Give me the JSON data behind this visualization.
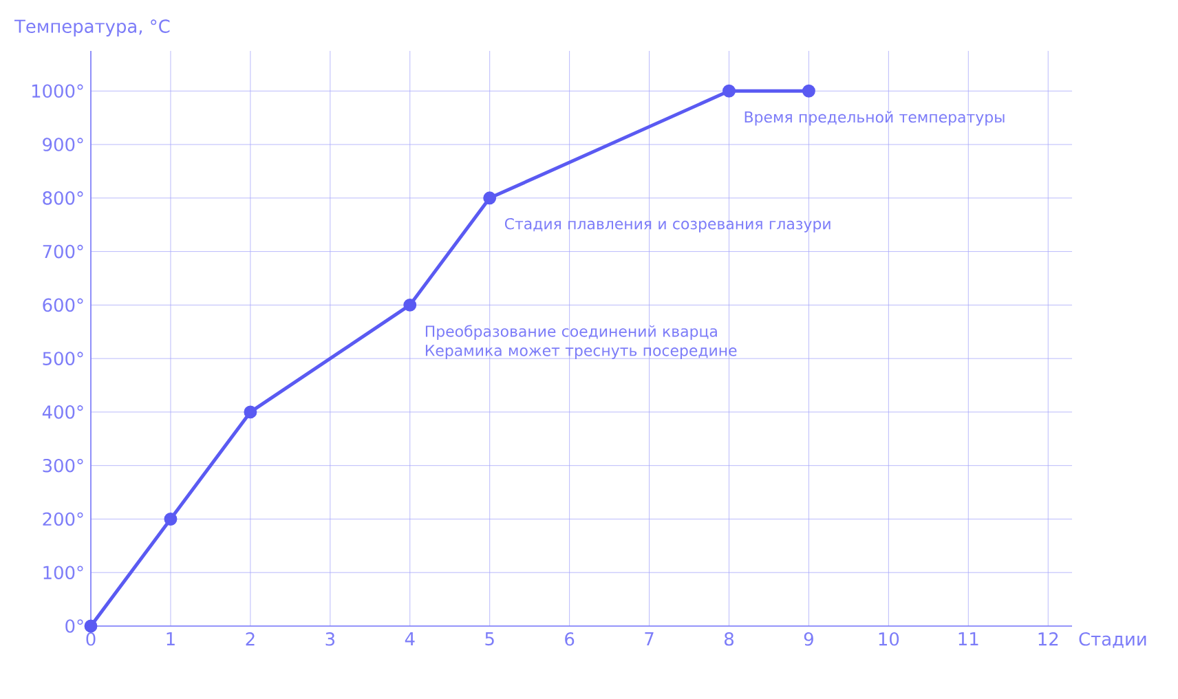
{
  "chart_data": {
    "type": "line",
    "xlabel": "Стадии",
    "ylabel": "Температура, °С",
    "x": [
      0,
      1,
      2,
      4,
      5,
      8,
      9
    ],
    "series": [
      {
        "color": "#5a5af2",
        "values": [
          0,
          200,
          400,
          600,
          800,
          1000,
          1000
        ]
      }
    ],
    "xlim": [
      0,
      12.3
    ],
    "ylim": [
      0,
      1075
    ],
    "xticks": [
      0,
      1,
      2,
      3,
      4,
      5,
      6,
      7,
      8,
      9,
      10,
      11,
      12
    ],
    "yticks": [
      {
        "value": 0,
        "label": "0°"
      },
      {
        "value": 100,
        "label": "100°"
      },
      {
        "value": 200,
        "label": "200°"
      },
      {
        "value": 300,
        "label": "300°"
      },
      {
        "value": 400,
        "label": "400°"
      },
      {
        "value": 500,
        "label": "500°"
      },
      {
        "value": 600,
        "label": "600°"
      },
      {
        "value": 700,
        "label": "700°"
      },
      {
        "value": 800,
        "label": "800°"
      },
      {
        "value": 900,
        "label": "900°"
      },
      {
        "value": 1000,
        "label": "1000°"
      }
    ],
    "grid": true,
    "marker": "circle",
    "line_style": "solid",
    "annotations": [
      {
        "text": "Время предельной температуры",
        "x": 8,
        "y": 1000
      },
      {
        "text": "Стадия плавления и созревания глазури",
        "x": 5,
        "y": 800
      },
      {
        "text": "Преобразование соединений кварца Керамика может треснуть посередине",
        "x": 4,
        "y": 600
      }
    ]
  }
}
